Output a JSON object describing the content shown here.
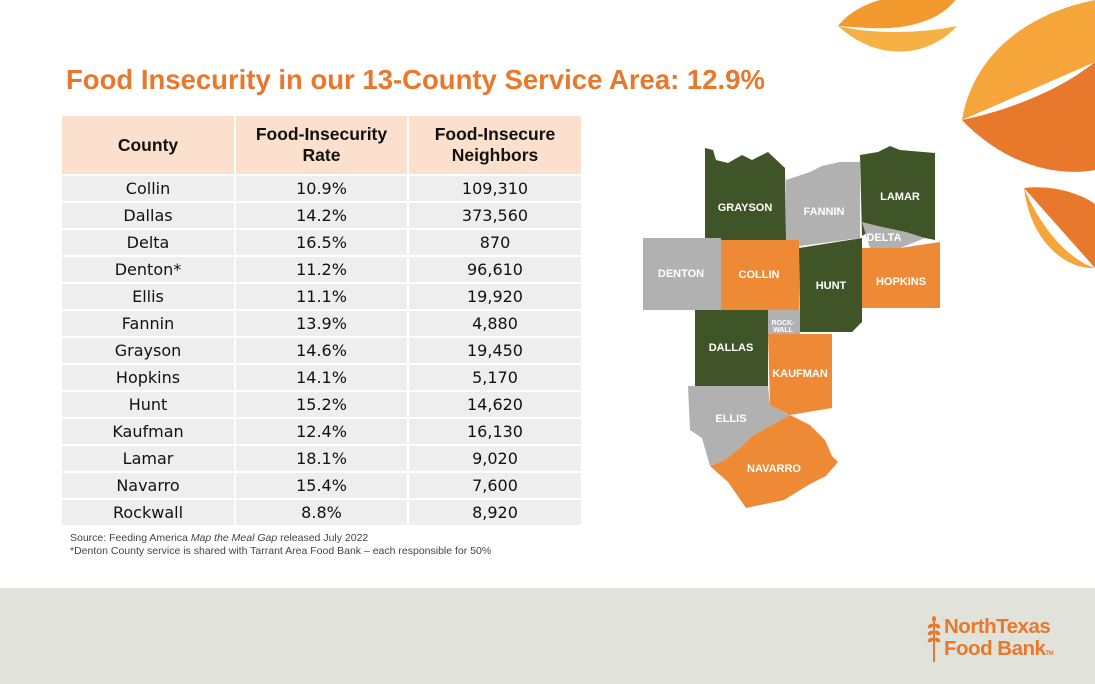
{
  "title": "Food Insecurity in our 13-County Service Area: 12.9%",
  "table": {
    "headers": [
      "County",
      "Food-Insecurity Rate",
      "Food-Insecure Neighbors"
    ],
    "rows": [
      [
        "Collin",
        "10.9%",
        "109,310"
      ],
      [
        "Dallas",
        "14.2%",
        "373,560"
      ],
      [
        "Delta",
        "16.5%",
        "870"
      ],
      [
        "Denton*",
        "11.2%",
        "96,610"
      ],
      [
        "Ellis",
        "11.1%",
        "19,920"
      ],
      [
        "Fannin",
        "13.9%",
        "4,880"
      ],
      [
        "Grayson",
        "14.6%",
        "19,450"
      ],
      [
        "Hopkins",
        "14.1%",
        "5,170"
      ],
      [
        "Hunt",
        "15.2%",
        "14,620"
      ],
      [
        "Kaufman",
        "12.4%",
        "16,130"
      ],
      [
        "Lamar",
        "18.1%",
        "9,020"
      ],
      [
        "Navarro",
        "15.4%",
        "7,600"
      ],
      [
        "Rockwall",
        "8.8%",
        "8,920"
      ]
    ]
  },
  "source": {
    "prefix": "Source: Feeding America ",
    "italic": "Map the Meal Gap",
    "suffix": " released July 2022",
    "note": "*Denton County service is shared with Tarrant Area Food Bank – each responsible for 50%"
  },
  "map": {
    "labels": {
      "grayson": "GRAYSON",
      "fannin": "FANNIN",
      "lamar": "LAMAR",
      "delta": "DELTA",
      "denton": "DENTON",
      "collin": "COLLIN",
      "hunt": "HUNT",
      "hopkins": "HOPKINS",
      "rockwall_1": "ROCK-",
      "rockwall_2": "WALL",
      "dallas": "DALLAS",
      "kaufman": "KAUFMAN",
      "ellis": "ELLIS",
      "navarro": "NAVARRO"
    },
    "colors": {
      "green": "#3f5528",
      "gray": "#b1b1b1",
      "orange": "#ee8a36"
    }
  },
  "logo": {
    "line1": "NorthTexas",
    "line2": "Food Bank",
    "tm": "TM"
  },
  "colors": {
    "accent": "#e8782c",
    "header_bg": "#fbe1cd",
    "row_bg": "#eeeeee",
    "footer_bg": "#e1e3da"
  }
}
